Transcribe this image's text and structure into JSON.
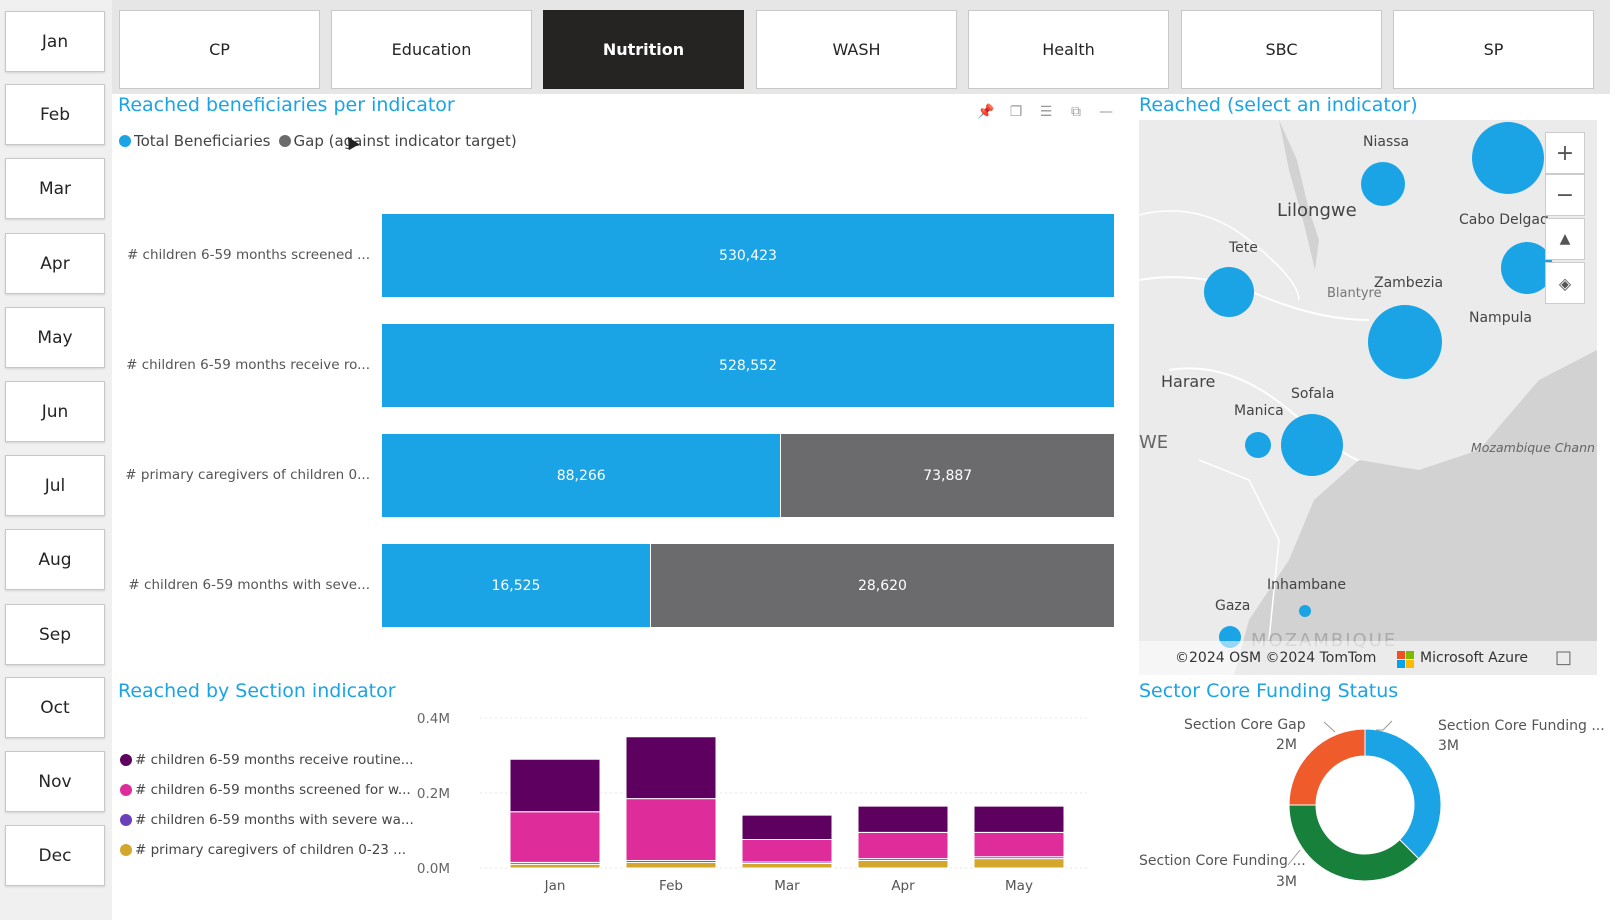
{
  "months": [
    "Jan",
    "Feb",
    "Mar",
    "Apr",
    "May",
    "Jun",
    "Jul",
    "Aug",
    "Sep",
    "Oct",
    "Nov",
    "Dec"
  ],
  "tabs": [
    {
      "label": "CP",
      "active": false
    },
    {
      "label": "Education",
      "active": false
    },
    {
      "label": "Nutrition",
      "active": true
    },
    {
      "label": "WASH",
      "active": false
    },
    {
      "label": "Health",
      "active": false
    },
    {
      "label": "SBC",
      "active": false
    },
    {
      "label": "SP",
      "active": false
    }
  ],
  "colors": {
    "accent": "#1aa4e6",
    "gap": "#6b6b6d",
    "active_tab": "#252423",
    "purple_dark": "#5d0060",
    "magenta": "#de2c9a",
    "violet": "#6b3fb8",
    "gold": "#d4a72c",
    "green": "#17813c",
    "orange": "#ef5b2b"
  },
  "indicator_chart": {
    "title": "Reached beneficiaries per indicator",
    "legend": [
      {
        "label": "Total Beneficiaries",
        "color": "#1aa4e6"
      },
      {
        "label": "Gap (against indicator target)",
        "color": "#6b6b6d"
      }
    ],
    "icons": [
      "pin-icon",
      "copy-icon",
      "filter-icon",
      "focus-mode-icon",
      "more-options-icon"
    ]
  },
  "chart_data": [
    {
      "type": "bar",
      "orientation": "horizontal",
      "stacked": true,
      "categories": [
        "# children 6-59 months screened ...",
        "# children 6-59 months receive ro...",
        "# primary caregivers of children 0...",
        "# children 6-59 months with seve..."
      ],
      "series": [
        {
          "name": "Total Beneficiaries",
          "values": [
            530423,
            528552,
            88266,
            16525
          ],
          "labels": [
            "530,423",
            "528,552",
            "88,266",
            "16,525"
          ]
        },
        {
          "name": "Gap (against indicator target)",
          "values": [
            0,
            0,
            73887,
            28620
          ],
          "labels": [
            "",
            "",
            "73,887",
            "28,620"
          ]
        }
      ]
    },
    {
      "type": "bar",
      "stacked": true,
      "categories": [
        "Jan",
        "Feb",
        "Mar",
        "Apr",
        "May"
      ],
      "ylim": [
        0,
        0.4
      ],
      "yticks": [
        "0.4M",
        "0.2M",
        "0.0M"
      ],
      "series": [
        {
          "name": "# primary caregivers of children 0-23 ...",
          "values": [
            0.01,
            0.015,
            0.012,
            0.02,
            0.025
          ]
        },
        {
          "name": "# children 6-59 months with severe wa...",
          "values": [
            0.005,
            0.005,
            0.004,
            0.005,
            0.005
          ]
        },
        {
          "name": "# children 6-59 months screened for w...",
          "values": [
            0.135,
            0.165,
            0.06,
            0.07,
            0.065
          ]
        },
        {
          "name": "# children 6-59 months receive routine...",
          "values": [
            0.14,
            0.165,
            0.065,
            0.07,
            0.07
          ]
        }
      ]
    },
    {
      "type": "pie",
      "donut": true,
      "slices": [
        {
          "name": "Section Core Funding ...",
          "value": 3,
          "label": "3M"
        },
        {
          "name": "Section Core Funding ...",
          "value": 3,
          "label": "3M"
        },
        {
          "name": "Section Core Gap",
          "value": 2,
          "label": "2M"
        }
      ]
    }
  ],
  "section_chart": {
    "title": "Reached by Section indicator"
  },
  "map": {
    "title": "Reached (select an indicator)",
    "labels": [
      "Niassa",
      "Lilongwe",
      "Cabo Delgad",
      "Tete",
      "Zambezia",
      "Blantyre",
      "Nampula",
      "Harare",
      "Sofala",
      "Manica",
      "WE",
      "Mozambique Chann",
      "Inhambane",
      "Gaza",
      "MOZAMBIQUE"
    ],
    "attribution": "©2024 OSM ©2024 TomTom",
    "brand": "Microsoft Azure",
    "buttons": [
      "zoom-in-icon",
      "zoom-out-icon",
      "tilt-icon",
      "compass-icon"
    ]
  },
  "funding": {
    "title": "Sector Core Funding Status"
  }
}
